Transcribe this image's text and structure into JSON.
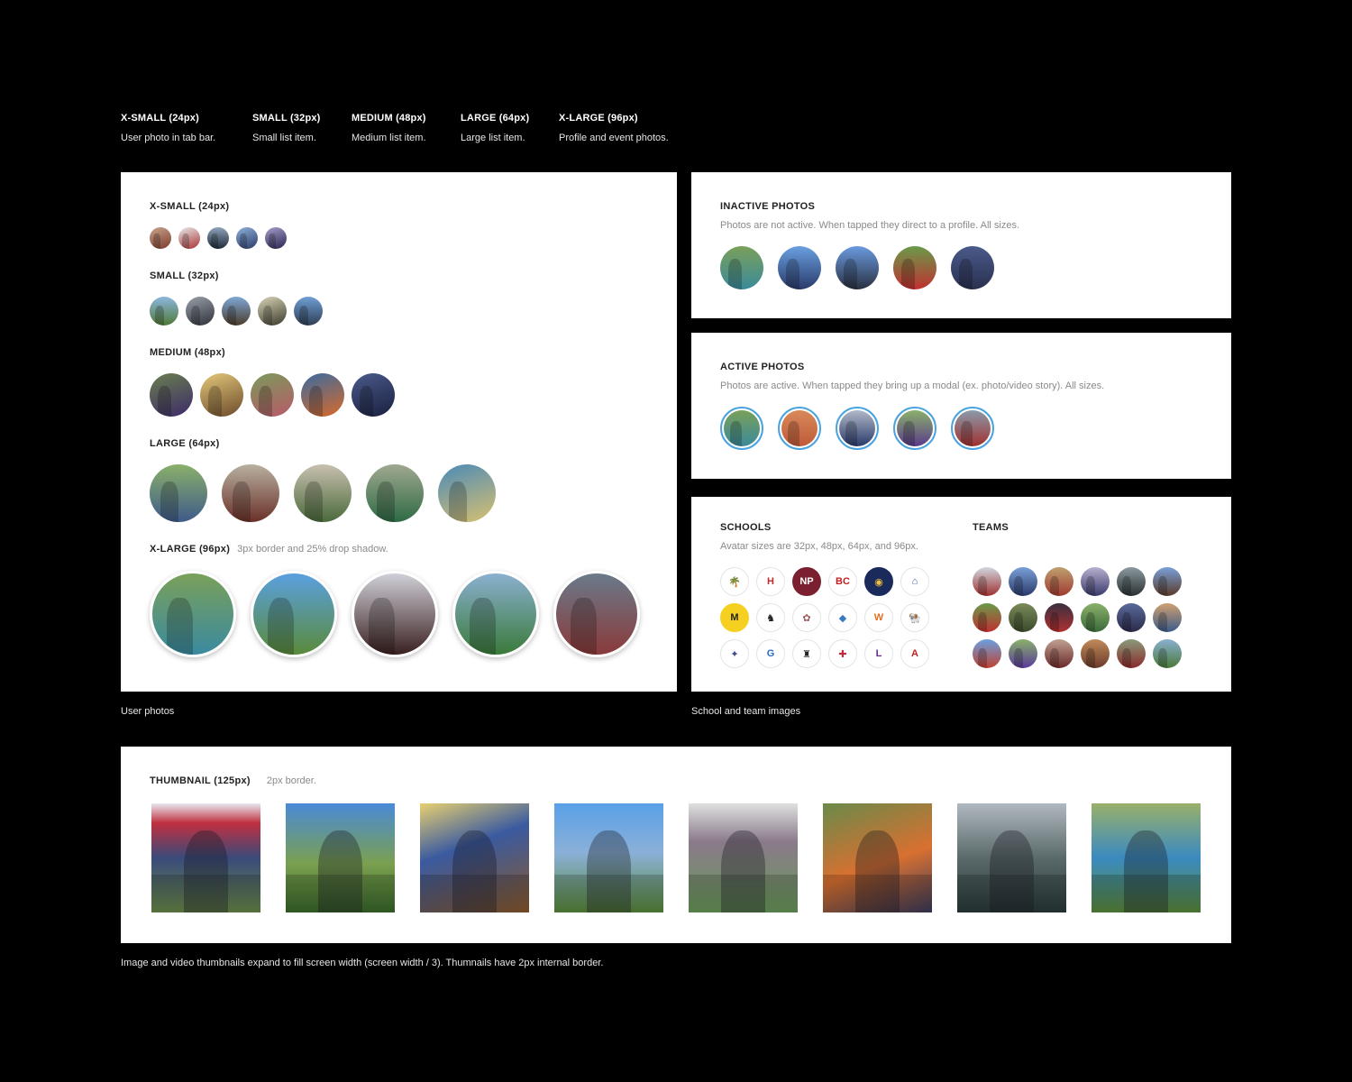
{
  "legend": [
    {
      "title": "X-SMALL (24px)",
      "desc": "User photo in tab bar."
    },
    {
      "title": "SMALL (32px)",
      "desc": "Small list item."
    },
    {
      "title": "MEDIUM (48px)",
      "desc": "Medium list item."
    },
    {
      "title": "LARGE (64px)",
      "desc": "Large list item."
    },
    {
      "title": "X-LARGE (96px)",
      "desc": "Profile and event photos."
    }
  ],
  "user_photos": {
    "xsmall_title": "X-SMALL (24px)",
    "small_title": "SMALL (32px)",
    "medium_title": "MEDIUM (48px)",
    "large_title": "LARGE (64px)",
    "xlarge_title": "X-LARGE (96px)",
    "xlarge_note": "3px border and 25% drop shadow.",
    "caption": "User photos"
  },
  "inactive": {
    "title": "INACTIVE PHOTOS",
    "desc": "Photos are not active. When tapped they direct to a profile. All sizes."
  },
  "active": {
    "title": "ACTIVE PHOTOS",
    "desc": "Photos are active. When tapped they bring up a modal (ex. photo/video story). All sizes.",
    "ring_color": "#4aa3df"
  },
  "schools": {
    "title": "SCHOOLS",
    "desc": "Avatar sizes are 32px, 48px, 64px, and 96px.",
    "logos": [
      "🌴",
      "H",
      "NP",
      "BC",
      "◉",
      "⌂",
      "M",
      "♞",
      "✿",
      "◆",
      "W",
      "🐏",
      "✦",
      "G",
      "♜",
      "✚",
      "L",
      "A"
    ]
  },
  "teams": {
    "title": "TEAMS"
  },
  "school_caption": "School and team images",
  "thumbnail": {
    "title": "THUMBNAIL (125px)",
    "note": "2px border.",
    "caption": "Image and video thumbnails expand to fill screen width (screen width / 3). Thumnails have 2px internal border."
  }
}
